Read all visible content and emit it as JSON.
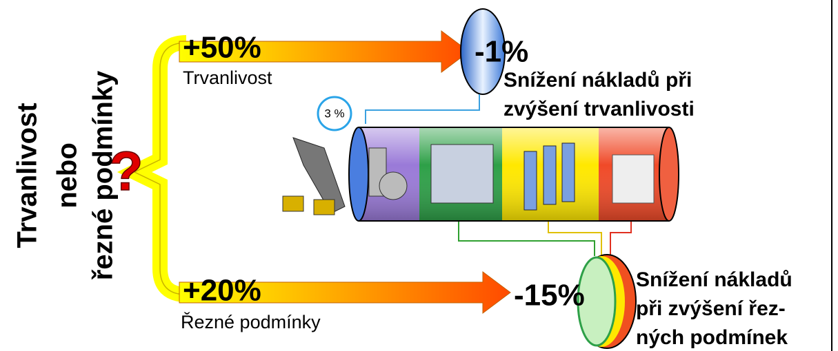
{
  "side_label": [
    "Trvanlivost",
    "nebo",
    "řezné podmínky"
  ],
  "question": "?",
  "top": {
    "gain": "+50%",
    "label": "Trvanlivost",
    "saving": "-1%",
    "note": [
      "Snížení nákladů při",
      "zvýšení trvanlivosti"
    ],
    "share": "3 %"
  },
  "bottom": {
    "gain": "+20%",
    "label": "Řezné podmínky",
    "saving": "-15%",
    "note": [
      "Snížení nákladů",
      "při zvýšení řez-",
      "ných podmínek"
    ]
  }
}
